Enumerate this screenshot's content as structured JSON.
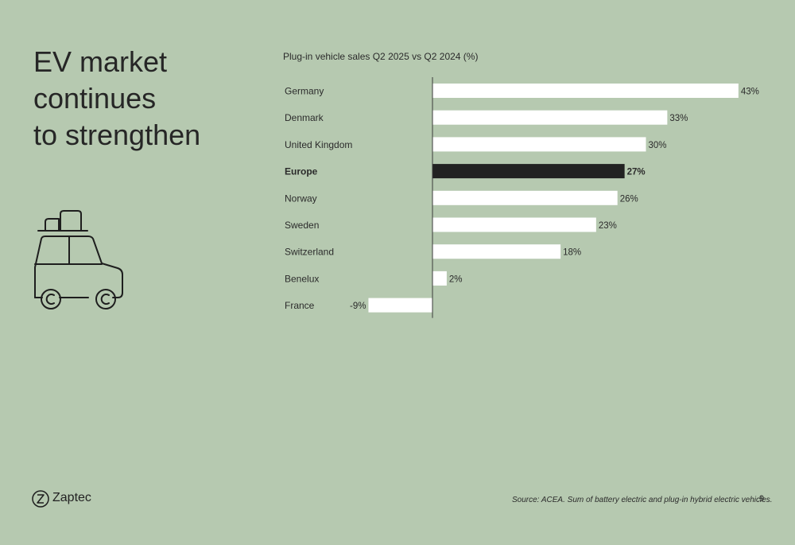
{
  "headline": [
    "EV market",
    "continues",
    "to strengthen"
  ],
  "chart_data": {
    "type": "bar",
    "orientation": "horizontal",
    "title": "Plug-in vehicle sales Q2 2025 vs Q2 2024 (%)",
    "categories": [
      "Germany",
      "Denmark",
      "United Kingdom",
      "Europe",
      "Norway",
      "Sweden",
      "Switzerland",
      "Benelux",
      "France"
    ],
    "values": [
      43,
      33,
      30,
      27,
      26,
      23,
      18,
      2,
      -9
    ],
    "value_labels": [
      "43%",
      "33%",
      "30%",
      "27%",
      "26%",
      "23%",
      "18%",
      "2%",
      "-9%"
    ],
    "highlight": "Europe",
    "colors": {
      "bar": "#ffffff",
      "highlight": "#222222",
      "axis": "#3a3a3a"
    },
    "xlabel": "",
    "ylabel": ""
  },
  "brand": {
    "name": "Zaptec",
    "icon": "z-logo-icon"
  },
  "footer": {
    "source": "Source: ACEA. Sum of battery electric and plug-in hybrid electric vehicles.",
    "page": "9"
  }
}
